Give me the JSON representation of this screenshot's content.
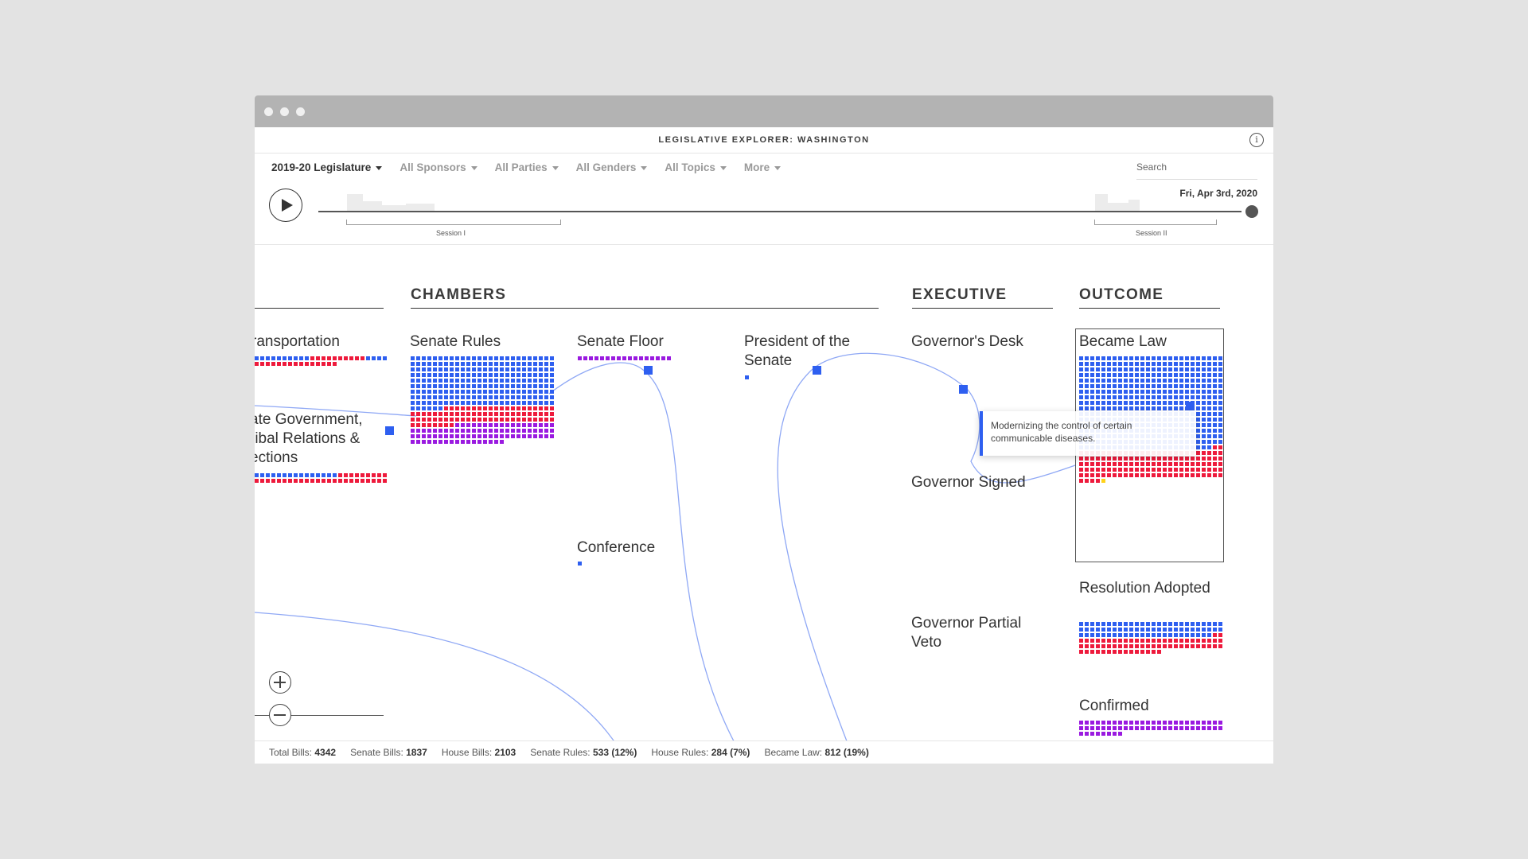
{
  "app": {
    "title": "LEGISLATIVE EXPLORER: WASHINGTON",
    "info_icon": "info-icon"
  },
  "filters": [
    {
      "label": "2019-20 Legislature",
      "active": true
    },
    {
      "label": "All Sponsors",
      "active": false
    },
    {
      "label": "All Parties",
      "active": false
    },
    {
      "label": "All Genders",
      "active": false
    },
    {
      "label": "All Topics",
      "active": false
    },
    {
      "label": "More",
      "active": false
    }
  ],
  "search": {
    "placeholder": "Search"
  },
  "timeline": {
    "current_date": "Fri, Apr 3rd, 2020",
    "sessions": [
      {
        "label": "Session I"
      },
      {
        "label": "Session II"
      }
    ],
    "progress": 1.0
  },
  "sections": [
    {
      "title": "CHAMBERS"
    },
    {
      "title": "EXECUTIVE"
    },
    {
      "title": "OUTCOME"
    }
  ],
  "stages": {
    "transportation": "ransportation",
    "state_government": "ate Government,\nribal Relations &\nections",
    "senate_rules": "Senate Rules",
    "senate_floor": "Senate Floor",
    "conference": "Conference",
    "president_senate": "President of the\nSenate",
    "governors_desk": "Governor's Desk",
    "governor_signed": "Governor Signed",
    "governor_partial_veto": "Governor Partial\nVeto",
    "became_law": "Became Law",
    "resolution_adopted": "Resolution Adopted",
    "confirmed": "Confirmed"
  },
  "tooltip": {
    "text": "Modernizing the control of certain communicable diseases."
  },
  "footer": [
    {
      "label": "Total Bills:",
      "value": "4342"
    },
    {
      "label": "Senate Bills:",
      "value": "1837"
    },
    {
      "label": "House Bills:",
      "value": "2103"
    },
    {
      "label": "Senate Rules:",
      "value": "533 (12%)"
    },
    {
      "label": "House Rules:",
      "value": "284 (7%)"
    },
    {
      "label": "Became Law:",
      "value": "812 (19%)"
    }
  ],
  "colors": {
    "democrat": "#2e5ff0",
    "republican": "#ee1a3c",
    "bipartisan": "#9a1ae0",
    "highlight": "#ffd21a"
  },
  "controls": {
    "play": "play-icon",
    "zoom_in": "zoom-in-icon",
    "zoom_out": "zoom-out-icon"
  }
}
